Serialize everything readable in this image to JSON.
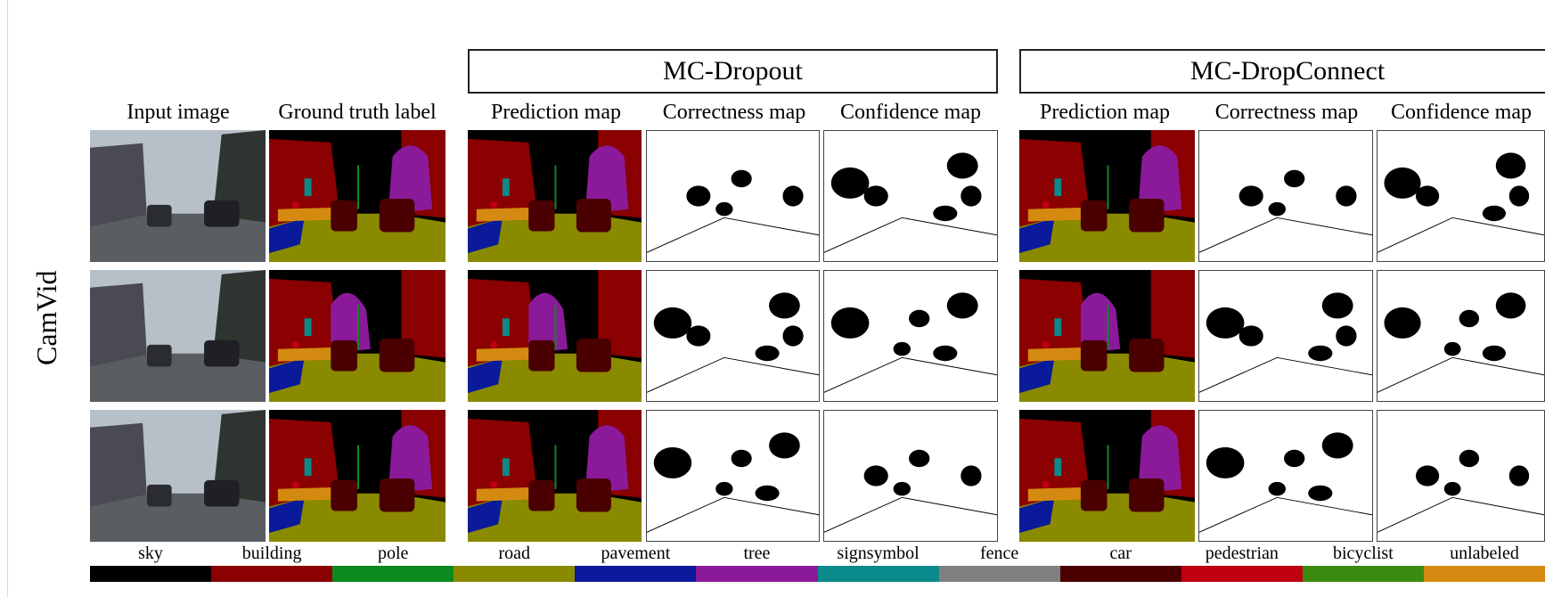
{
  "figure": {
    "methods": [
      "MC-Dropout",
      "MC-DropConnect"
    ],
    "column_headers": {
      "input": "Input image",
      "ground_truth": "Ground truth label",
      "prediction": "Prediction map",
      "correctness": "Correctness map",
      "confidence": "Confidence map"
    },
    "row_label": "CamVid"
  },
  "legend": {
    "classes": [
      {
        "label": "sky",
        "color": "#000000"
      },
      {
        "label": "building",
        "color": "#8b0000"
      },
      {
        "label": "pole",
        "color": "#0b8a1e"
      },
      {
        "label": "road",
        "color": "#8a8a00"
      },
      {
        "label": "pavement",
        "color": "#0a1a9a"
      },
      {
        "label": "tree",
        "color": "#8b1a9b"
      },
      {
        "label": "signsymbol",
        "color": "#0a8a8a"
      },
      {
        "label": "fence",
        "color": "#808080"
      },
      {
        "label": "car",
        "color": "#4a0000"
      },
      {
        "label": "pedestrian",
        "color": "#c00010"
      },
      {
        "label": "bicyclist",
        "color": "#3a8a10"
      },
      {
        "label": "unlabeled",
        "color": "#d48a10"
      }
    ]
  }
}
